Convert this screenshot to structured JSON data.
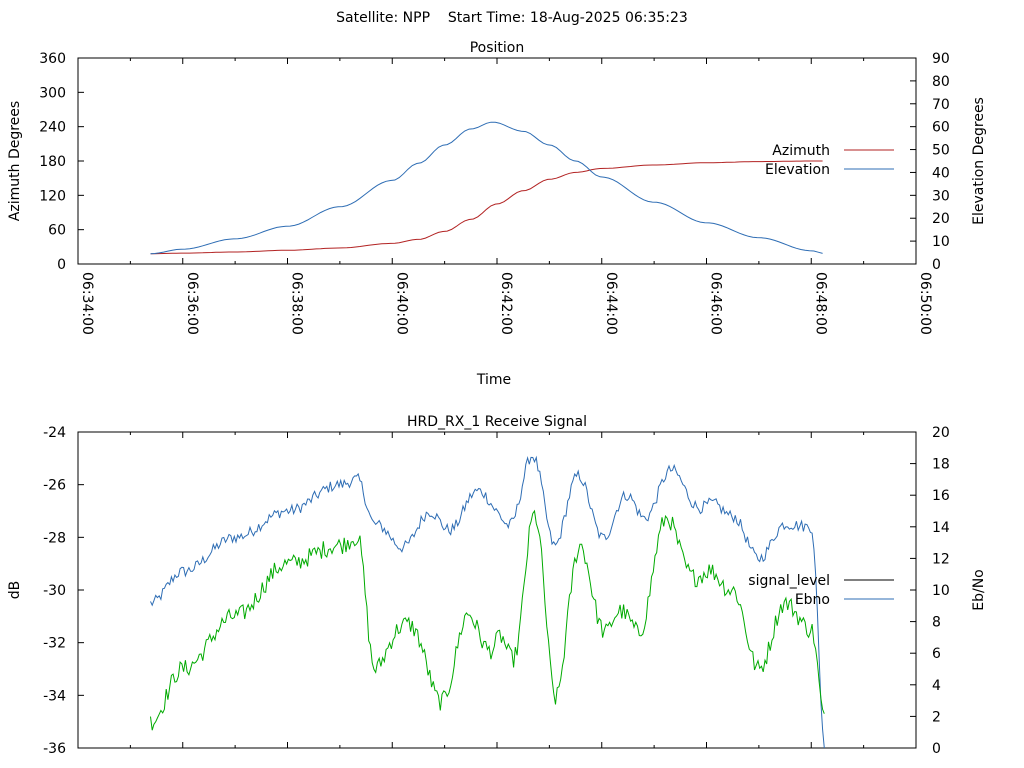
{
  "header": {
    "title": "Satellite: NPP    Start Time: 18-Aug-2025 06:35:23"
  },
  "chart_data": [
    {
      "type": "line",
      "title": "Position",
      "xlabel": "Time",
      "ylabel": "Azimuth Degrees",
      "y2label": "Elevation Degrees",
      "x_ticks": [
        "06:34:00",
        "06:36:00",
        "06:38:00",
        "06:40:00",
        "06:42:00",
        "06:44:00",
        "06:46:00",
        "06:48:00",
        "06:50:00"
      ],
      "xlim": [
        "06:34:00",
        "06:50:00"
      ],
      "ylim": [
        0,
        360
      ],
      "y_ticks": [
        0,
        60,
        120,
        180,
        240,
        300,
        360
      ],
      "y2lim": [
        0,
        90
      ],
      "y2_ticks": [
        0,
        10,
        20,
        30,
        40,
        50,
        60,
        70,
        80,
        90
      ],
      "legend_position": "right",
      "grid": false,
      "series": [
        {
          "name": "Azimuth",
          "axis": "left",
          "color": "#b22222",
          "x": [
            "06:35:23",
            "06:36:00",
            "06:37:00",
            "06:38:00",
            "06:39:00",
            "06:40:00",
            "06:40:30",
            "06:41:00",
            "06:41:30",
            "06:42:00",
            "06:42:30",
            "06:43:00",
            "06:43:30",
            "06:44:00",
            "06:45:00",
            "06:46:00",
            "06:47:00",
            "06:48:00",
            "06:48:16"
          ],
          "y": [
            18,
            19,
            21,
            24,
            28,
            36,
            43,
            57,
            78,
            105,
            128,
            148,
            160,
            167,
            173,
            177,
            179,
            180,
            180
          ]
        },
        {
          "name": "Elevation",
          "axis": "right",
          "color": "#2e6db4",
          "x": [
            "06:35:23",
            "06:36:00",
            "06:37:00",
            "06:38:00",
            "06:39:00",
            "06:40:00",
            "06:40:30",
            "06:41:00",
            "06:41:30",
            "06:41:55",
            "06:42:30",
            "06:43:00",
            "06:43:30",
            "06:44:00",
            "06:45:00",
            "06:46:00",
            "06:47:00",
            "06:48:00",
            "06:48:16"
          ],
          "y": [
            4.5,
            6.5,
            11,
            16.5,
            25,
            36.5,
            44,
            52,
            59,
            62,
            58,
            52,
            45,
            38,
            27,
            18,
            11.5,
            5.8,
            4.5
          ]
        }
      ]
    },
    {
      "type": "line",
      "title": "HRD_RX_1 Receive Signal",
      "xlabel": "",
      "ylabel": "dB",
      "y2label": "Eb/No",
      "x_ticks": [
        "06:34:00",
        "06:36:00",
        "06:38:00",
        "06:40:00",
        "06:42:00",
        "06:44:00",
        "06:46:00",
        "06:48:00",
        "06:50:00"
      ],
      "xlim": [
        "06:34:00",
        "06:50:00"
      ],
      "ylim": [
        -36,
        -24
      ],
      "y_ticks": [
        -36,
        -34,
        -32,
        -30,
        -28,
        -26,
        -24
      ],
      "y2lim": [
        0,
        20
      ],
      "y2_ticks": [
        0,
        2,
        4,
        6,
        8,
        10,
        12,
        14,
        16,
        18,
        20
      ],
      "legend_position": "right",
      "grid": false,
      "series": [
        {
          "name": "signal_level",
          "axis": "left",
          "color": "#000000",
          "legend_only": true,
          "x": [],
          "y": []
        },
        {
          "name": "Ebno",
          "axis": "left",
          "color": "#2e6db4",
          "x": [
            "06:35:23",
            "06:36:00",
            "06:37:00",
            "06:38:00",
            "06:39:00",
            "06:39:20",
            "06:39:40",
            "06:40:10",
            "06:40:50",
            "06:41:30",
            "06:42:00",
            "06:42:20",
            "06:42:45",
            "06:43:10",
            "06:43:40",
            "06:44:10",
            "06:44:40",
            "06:45:20",
            "06:46:00",
            "06:46:30",
            "06:47:00",
            "06:47:30",
            "06:48:00",
            "06:48:16"
          ],
          "y": [
            -30.5,
            -29.3,
            -28.0,
            -27.0,
            -26.0,
            -25.8,
            -27.5,
            -28.2,
            -27.3,
            -27.0,
            -26.3,
            -27.5,
            -25.2,
            -27.8,
            -26.2,
            -27.6,
            -26.8,
            -25.9,
            -26.7,
            -27.2,
            -28.8,
            -27.5,
            -27.6,
            -36.0
          ]
        },
        {
          "name": "signal",
          "axis": "left",
          "color": "#00aa00",
          "x": [
            "06:35:23",
            "06:36:00",
            "06:37:00",
            "06:38:00",
            "06:39:00",
            "06:39:20",
            "06:39:40",
            "06:40:10",
            "06:40:50",
            "06:41:30",
            "06:42:00",
            "06:42:20",
            "06:42:45",
            "06:43:10",
            "06:43:40",
            "06:44:10",
            "06:44:40",
            "06:45:20",
            "06:46:00",
            "06:46:30",
            "06:47:00",
            "06:47:30",
            "06:48:00",
            "06:48:16"
          ],
          "y": [
            -35.0,
            -33.0,
            -31.0,
            -29.0,
            -28.3,
            -28.0,
            -33.0,
            -31.2,
            -33.5,
            -32.0,
            -30.8,
            -34.0,
            -26.0,
            -34.8,
            -27.5,
            -32.5,
            -30.5,
            -28.0,
            -29.5,
            -30.0,
            -33.0,
            -30.5,
            -31.5,
            -35.0
          ]
        }
      ]
    }
  ]
}
